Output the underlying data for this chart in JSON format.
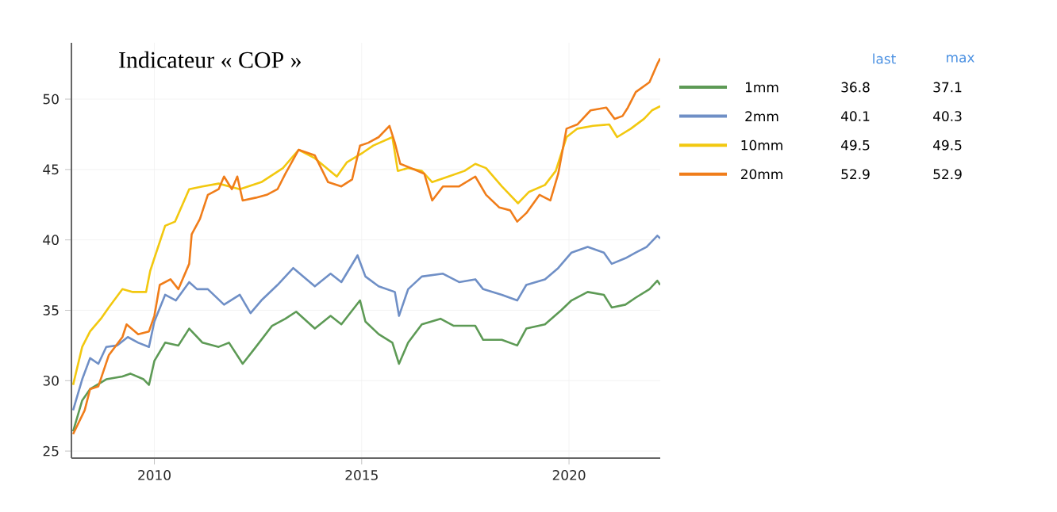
{
  "chart_data": {
    "type": "line",
    "title": "Indicateur « COP »",
    "xlim": [
      2008,
      2022.2
    ],
    "ylim": [
      24.5,
      54
    ],
    "xticks": [
      2010,
      2015,
      2020
    ],
    "yticks": [
      25,
      30,
      35,
      40,
      45,
      50
    ],
    "grid": true,
    "legend": "top right",
    "line_style": "solid",
    "marker": "none",
    "annotations": [
      "last",
      "max",
      "36.8",
      "37.1",
      "40.1",
      "40.3",
      "49.5",
      "49.5",
      "52.9",
      "52.9"
    ],
    "series": [
      {
        "name": "1mm",
        "color": "#5d9a55",
        "x": [
          2008.04,
          2008.26,
          2008.45,
          2008.84,
          2009.23,
          2009.42,
          2009.74,
          2009.87,
          2010,
          2010.26,
          2010.58,
          2010.84,
          2011.16,
          2011.55,
          2011.8,
          2012.13,
          2012.45,
          2012.84,
          2013.16,
          2013.42,
          2013.87,
          2014.25,
          2014.51,
          2014.96,
          2015.09,
          2015.41,
          2015.74,
          2015.9,
          2016.12,
          2016.45,
          2016.9,
          2017.22,
          2017.74,
          2017.93,
          2018.38,
          2018.75,
          2018.97,
          2019.42,
          2019.81,
          2020.06,
          2020.45,
          2020.84,
          2021.03,
          2021.36,
          2021.61,
          2021.94,
          2022.13,
          2022.2
        ],
        "values": [
          26.4,
          28.6,
          29.4,
          30.1,
          30.3,
          30.5,
          30.1,
          29.7,
          31.4,
          32.7,
          32.5,
          33.7,
          32.7,
          32.4,
          32.7,
          31.2,
          32.4,
          33.9,
          34.4,
          34.9,
          33.7,
          34.6,
          34.0,
          35.7,
          34.2,
          33.3,
          32.7,
          31.2,
          32.7,
          34.0,
          34.4,
          33.9,
          33.9,
          32.9,
          32.9,
          32.5,
          33.7,
          34.0,
          35.0,
          35.7,
          36.3,
          36.1,
          35.2,
          35.4,
          35.9,
          36.5,
          37.1,
          36.8
        ]
      },
      {
        "name": "2mm",
        "color": "#6f8fc6",
        "x": [
          2008.04,
          2008.26,
          2008.45,
          2008.65,
          2008.84,
          2009.1,
          2009.36,
          2009.61,
          2009.87,
          2010,
          2010.26,
          2010.52,
          2010.84,
          2011.03,
          2011.29,
          2011.68,
          2012.06,
          2012.32,
          2012.58,
          2012.97,
          2013.35,
          2013.87,
          2014.25,
          2014.51,
          2014.9,
          2015.09,
          2015.41,
          2015.8,
          2015.9,
          2016.12,
          2016.45,
          2016.96,
          2017.35,
          2017.74,
          2017.93,
          2018.38,
          2018.75,
          2018.97,
          2019.42,
          2019.74,
          2020.06,
          2020.45,
          2020.84,
          2021.03,
          2021.36,
          2021.61,
          2021.87,
          2022.13,
          2022.2
        ],
        "values": [
          27.9,
          30.1,
          31.6,
          31.2,
          32.4,
          32.5,
          33.1,
          32.7,
          32.4,
          34.2,
          36.1,
          35.7,
          37.0,
          36.5,
          36.5,
          35.4,
          36.1,
          34.8,
          35.7,
          36.8,
          38.0,
          36.7,
          37.6,
          37.0,
          38.9,
          37.4,
          36.7,
          36.3,
          34.6,
          36.5,
          37.4,
          37.6,
          37.0,
          37.2,
          36.5,
          36.1,
          35.7,
          36.8,
          37.2,
          38.0,
          39.1,
          39.5,
          39.1,
          38.3,
          38.7,
          39.1,
          39.5,
          40.3,
          40.1
        ]
      },
      {
        "name": "10mm",
        "color": "#f2c80f",
        "x": [
          2008.04,
          2008.26,
          2008.45,
          2008.71,
          2008.9,
          2009.23,
          2009.48,
          2009.8,
          2009.9,
          2010,
          2010.26,
          2010.5,
          2010.84,
          2011.16,
          2011.55,
          2012.06,
          2012.58,
          2013.1,
          2013.48,
          2013.87,
          2014.4,
          2014.64,
          2015.03,
          2015.28,
          2015.74,
          2015.87,
          2016.12,
          2016.45,
          2016.7,
          2017.09,
          2017.48,
          2017.74,
          2018.0,
          2018.38,
          2018.77,
          2019.03,
          2019.42,
          2019.68,
          2019.94,
          2020.2,
          2020.58,
          2020.97,
          2021.16,
          2021.49,
          2021.81,
          2022.0,
          2022.2
        ],
        "values": [
          29.7,
          32.4,
          33.5,
          34.4,
          35.2,
          36.5,
          36.3,
          36.3,
          37.8,
          38.7,
          41.0,
          41.3,
          43.6,
          43.8,
          44.0,
          43.6,
          44.1,
          45.1,
          46.4,
          45.8,
          44.5,
          45.5,
          46.2,
          46.7,
          47.3,
          44.9,
          45.1,
          44.9,
          44.1,
          44.5,
          44.9,
          45.4,
          45.1,
          43.8,
          42.6,
          43.4,
          43.9,
          44.9,
          47.3,
          47.9,
          48.1,
          48.2,
          47.3,
          47.9,
          48.6,
          49.2,
          49.5
        ]
      },
      {
        "name": "20mm",
        "color": "#f07d1a",
        "x": [
          2008.04,
          2008.32,
          2008.45,
          2008.65,
          2008.9,
          2009.23,
          2009.33,
          2009.61,
          2009.87,
          2010,
          2010.13,
          2010.39,
          2010.58,
          2010.84,
          2010.9,
          2011.1,
          2011.29,
          2011.55,
          2011.68,
          2011.87,
          2012.0,
          2012.13,
          2012.45,
          2012.71,
          2012.97,
          2013.16,
          2013.48,
          2013.87,
          2014.19,
          2014.51,
          2014.77,
          2014.96,
          2015.16,
          2015.41,
          2015.67,
          2015.8,
          2015.93,
          2016.19,
          2016.51,
          2016.7,
          2016.96,
          2017.35,
          2017.74,
          2018.0,
          2018.32,
          2018.58,
          2018.75,
          2018.97,
          2019.29,
          2019.55,
          2019.74,
          2019.94,
          2020.2,
          2020.52,
          2020.9,
          2021.1,
          2021.29,
          2021.42,
          2021.61,
          2021.94,
          2022.13,
          2022.2
        ],
        "values": [
          26.2,
          27.9,
          29.4,
          29.6,
          31.8,
          33.1,
          34.0,
          33.3,
          33.5,
          34.6,
          36.8,
          37.2,
          36.5,
          38.3,
          40.4,
          41.5,
          43.2,
          43.6,
          44.5,
          43.6,
          44.5,
          42.8,
          43.0,
          43.2,
          43.6,
          44.7,
          46.4,
          46.0,
          44.1,
          43.8,
          44.3,
          46.7,
          46.9,
          47.3,
          48.1,
          46.9,
          45.4,
          45.1,
          44.7,
          42.8,
          43.8,
          43.8,
          44.5,
          43.2,
          42.3,
          42.1,
          41.3,
          41.9,
          43.2,
          42.8,
          44.7,
          47.9,
          48.2,
          49.2,
          49.4,
          48.6,
          48.8,
          49.4,
          50.5,
          51.2,
          52.5,
          52.9
        ]
      }
    ]
  }
}
